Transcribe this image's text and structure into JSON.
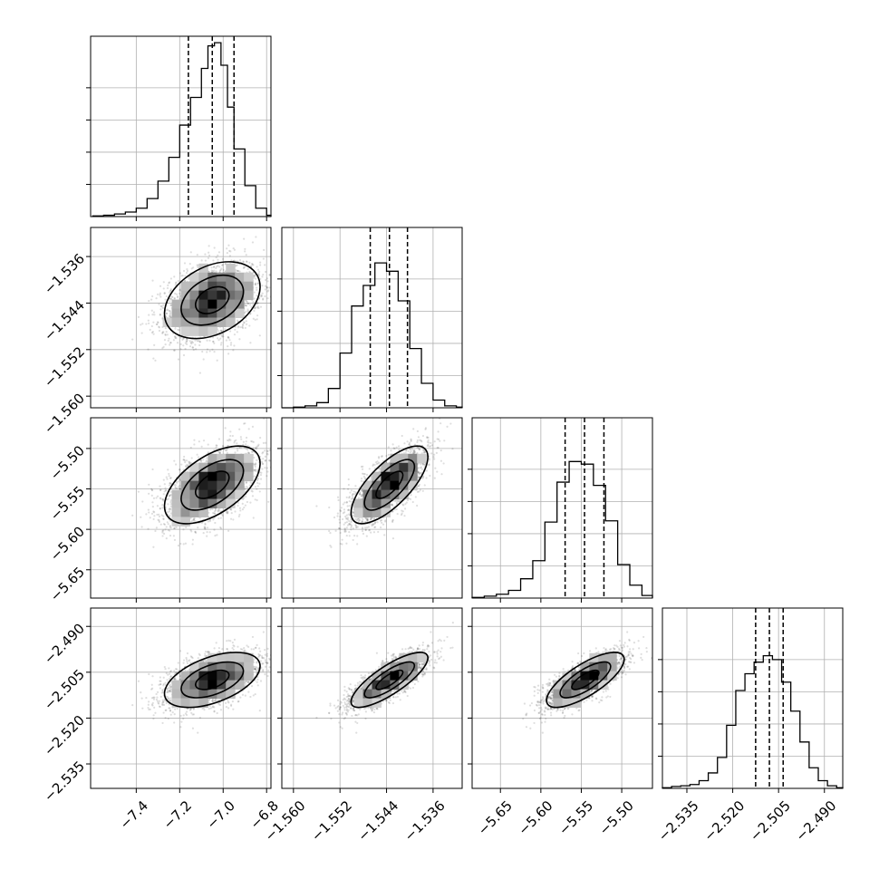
{
  "chart_data": {
    "type": "corner",
    "parameters": [
      {
        "mean": -7.05,
        "sd": 0.11,
        "q16": -7.16,
        "q50": -7.05,
        "q84": -6.95,
        "range": [
          -7.61,
          -6.78
        ],
        "ticks": [
          -7.4,
          -7.2,
          -7.0,
          -6.8
        ],
        "tick_labels": [
          "−7.4",
          "−7.2",
          "−7.0",
          "−6.8"
        ]
      },
      {
        "mean": -1.5435,
        "sd": 0.0033,
        "q16": -1.5468,
        "q50": -1.5435,
        "q84": -1.5404,
        "range": [
          -1.562,
          -1.531
        ],
        "ticks": [
          -1.56,
          -1.552,
          -1.544,
          -1.536
        ],
        "tick_labels": [
          "−1.560",
          "−1.552",
          "−1.544",
          "−1.536"
        ]
      },
      {
        "mean": -5.545,
        "sd": 0.024,
        "q16": -5.57,
        "q50": -5.546,
        "q84": -5.522,
        "range": [
          -5.685,
          -5.462
        ],
        "ticks": [
          -5.65,
          -5.6,
          -5.55,
          -5.5
        ],
        "tick_labels": [
          "−5.65",
          "−5.60",
          "−5.55",
          "−5.50"
        ]
      },
      {
        "mean": -2.5075,
        "sd": 0.0045,
        "q16": -2.5125,
        "q50": -2.508,
        "q84": -2.5035,
        "range": [
          -2.543,
          -2.484
        ],
        "ticks": [
          -2.535,
          -2.52,
          -2.505,
          -2.49
        ],
        "tick_labels": [
          "−2.535",
          "−2.520",
          "−2.505",
          "−2.490"
        ]
      }
    ],
    "correlations": [
      [
        1,
        0.35,
        0.55,
        0.5
      ],
      [
        0.35,
        1,
        0.72,
        0.8
      ],
      [
        0.55,
        0.72,
        1,
        0.75
      ],
      [
        0.5,
        0.8,
        0.75,
        1
      ]
    ],
    "marginal_histograms": [
      {
        "bins": [
          -7.6,
          -7.55,
          -7.5,
          -7.45,
          -7.4,
          -7.35,
          -7.3,
          -7.25,
          -7.2,
          -7.15,
          -7.1,
          -7.07,
          -7.04,
          -7.01,
          -6.98,
          -6.95,
          -6.9,
          -6.85,
          -6.8,
          -6.78
        ],
        "counts": [
          1,
          2,
          4,
          7,
          13,
          28,
          55,
          92,
          142,
          185,
          230,
          265,
          270,
          235,
          170,
          105,
          48,
          13,
          2
        ]
      },
      {
        "bins": [
          -1.562,
          -1.56,
          -1.558,
          -1.556,
          -1.554,
          -1.552,
          -1.55,
          -1.548,
          -1.546,
          -1.544,
          -1.542,
          -1.54,
          -1.538,
          -1.536,
          -1.534,
          -1.532,
          -1.531
        ],
        "counts": [
          0,
          1,
          3,
          8,
          30,
          85,
          158,
          190,
          225,
          212,
          166,
          92,
          38,
          12,
          3,
          1
        ]
      },
      {
        "bins": [
          -5.685,
          -5.67,
          -5.655,
          -5.64,
          -5.625,
          -5.61,
          -5.595,
          -5.58,
          -5.565,
          -5.55,
          -5.535,
          -5.52,
          -5.505,
          -5.49,
          -5.475,
          -5.462
        ],
        "counts": [
          1,
          3,
          6,
          12,
          30,
          58,
          118,
          180,
          212,
          208,
          175,
          120,
          52,
          20,
          4
        ]
      },
      {
        "bins": [
          -2.543,
          -2.54,
          -2.537,
          -2.534,
          -2.531,
          -2.528,
          -2.525,
          -2.522,
          -2.519,
          -2.516,
          -2.513,
          -2.51,
          -2.507,
          -2.504,
          -2.501,
          -2.498,
          -2.495,
          -2.492,
          -2.489,
          -2.486,
          -2.484
        ],
        "counts": [
          1,
          3,
          4,
          6,
          12,
          24,
          48,
          98,
          152,
          178,
          196,
          206,
          200,
          165,
          120,
          72,
          32,
          12,
          4,
          1
        ]
      }
    ],
    "histogram_peak_count": 280,
    "histogram_y_ticks": [
      50,
      100,
      150,
      200
    ],
    "quantiles": [
      0.16,
      0.5,
      0.84
    ],
    "contour_levels_sigma": [
      0.7,
      1.3,
      2.0
    ],
    "density_bins_per_axis": 20,
    "n_samples": 2400,
    "grid": true,
    "title": "",
    "xlabel": "",
    "ylabel": ""
  }
}
